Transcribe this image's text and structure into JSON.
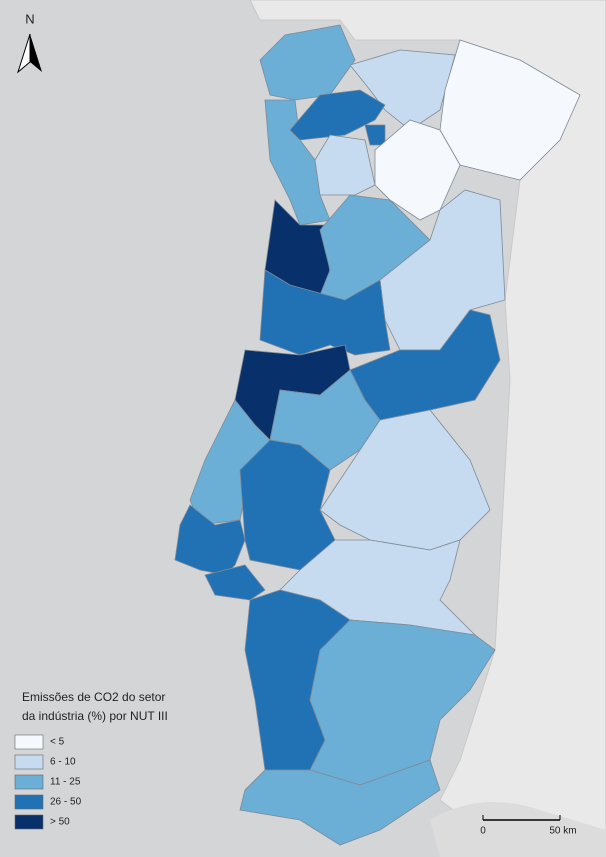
{
  "north_label": "N",
  "legend": {
    "title_lines": [
      "Emissões de CO2 do setor",
      "da indústria (%) por NUT III"
    ],
    "items": [
      {
        "label": "< 5",
        "color": "#f5f9fd"
      },
      {
        "label": "6 - 10",
        "color": "#c6dbef"
      },
      {
        "label": "11 - 25",
        "color": "#6baed6"
      },
      {
        "label": "26 - 50",
        "color": "#2171b5"
      },
      {
        "label": "> 50",
        "color": "#08306b"
      }
    ]
  },
  "scale_bar": {
    "labels": [
      "0",
      "50 km"
    ]
  }
}
